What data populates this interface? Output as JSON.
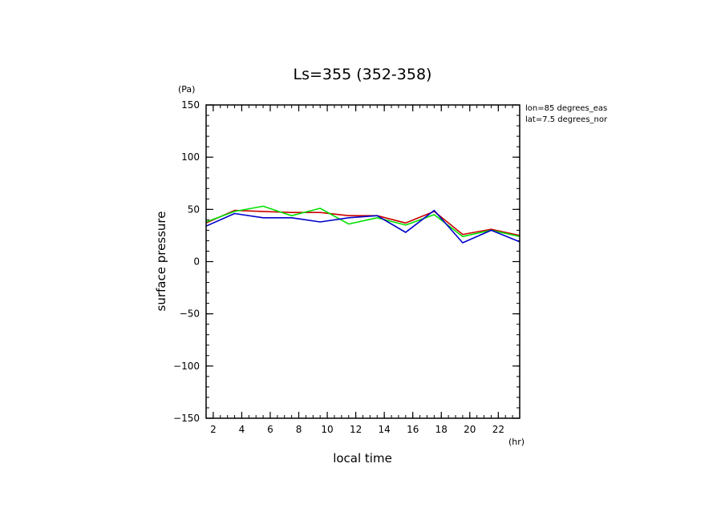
{
  "chart_data": {
    "type": "line",
    "title": "Ls=355 (352-358)",
    "xlabel": "local time",
    "ylabel": "surface pressure",
    "x_unit": "(hr)",
    "y_unit": "(Pa)",
    "annotation_lines": [
      "lon=85 degrees_eas",
      "lat=7.5 degrees_nor"
    ],
    "xlim": [
      1.5,
      23.5
    ],
    "ylim": [
      -150,
      150
    ],
    "x_ticks": [
      2,
      4,
      6,
      8,
      10,
      12,
      14,
      16,
      18,
      20,
      22
    ],
    "y_ticks": [
      150,
      100,
      50,
      0,
      -50,
      -100,
      -150
    ],
    "y_tick_labels": [
      "150",
      "100",
      "50",
      "0",
      "−50",
      "−100",
      "−150"
    ],
    "grid": false,
    "x": [
      1.5,
      3.5,
      5.5,
      7.5,
      9.5,
      11.5,
      13.5,
      15.5,
      17.5,
      19.5,
      21.5,
      23.5
    ],
    "series": [
      {
        "color": "#cc0000",
        "values": [
          37,
          49,
          48,
          47,
          47,
          44,
          44,
          37,
          48,
          26,
          31,
          25
        ]
      },
      {
        "color": "#00e000",
        "values": [
          38,
          48,
          53,
          44,
          51,
          36,
          42,
          35,
          45,
          24,
          30,
          24
        ]
      },
      {
        "color": "#0000cc",
        "values": [
          34,
          46,
          42,
          42,
          38,
          42,
          44,
          28,
          49,
          18,
          30,
          19
        ]
      }
    ]
  }
}
